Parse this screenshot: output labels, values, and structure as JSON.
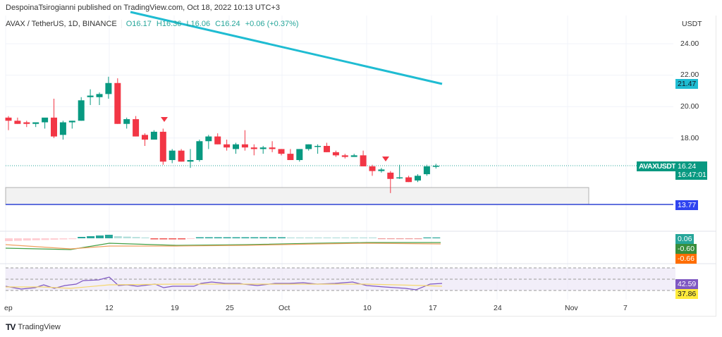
{
  "header": {
    "published_by": "DespoinaTsirogianni published on TradingView.com, Oct 18, 2022 10:13 UTC+3"
  },
  "legend": {
    "symbol": "AVAX / TetherUS, 1D, BINANCE",
    "open": "O16.17",
    "high": "H16.36",
    "low": "L16.06",
    "close": "C16.24",
    "change": "+0.06 (+0.37%)"
  },
  "price_axis": {
    "currency": "USDT",
    "ticks": [
      "24.00",
      "22.00",
      "20.00",
      "18.00"
    ],
    "trendline_tag": "21.47",
    "symbol_tag": "AVAXUSDT",
    "last_price_tag": "16.24",
    "countdown_tag": "16:47:01",
    "support_tag": "13.77"
  },
  "macd_axis": {
    "hist_tag": "0.06",
    "macd_tag": "-0.60",
    "signal_tag": "-0.66"
  },
  "rsi_axis": {
    "rsi_tag": "42.59",
    "ma_tag": "37.86"
  },
  "time_axis": {
    "labels": [
      "ep",
      "12",
      "19",
      "25",
      "Oct",
      "10",
      "17",
      "24",
      "Nov",
      "7"
    ]
  },
  "footer": {
    "logo": "TV",
    "brand": "TradingView"
  },
  "colors": {
    "up": "#089981",
    "down": "#f23645",
    "trendline": "#1fbcd2",
    "support_line": "#2f44d4",
    "rsi": "#7e57c2",
    "rsi_ma": "#f5d76e",
    "macd": "#43a047",
    "signal": "#ff6d00"
  },
  "chart_data": {
    "type": "candlestick",
    "title": "AVAX / TetherUS, 1D, BINANCE",
    "ylabel": "USDT",
    "ylim": [
      13.0,
      25.0
    ],
    "x_labels": [
      "Sep",
      "12",
      "19",
      "25",
      "Oct",
      "10",
      "17",
      "24",
      "Nov",
      "7"
    ],
    "candles": [
      {
        "o": 19.3,
        "h": 19.4,
        "l": 18.5,
        "c": 19.1
      },
      {
        "o": 19.1,
        "h": 19.3,
        "l": 18.9,
        "c": 18.9
      },
      {
        "o": 19.0,
        "h": 19.1,
        "l": 18.7,
        "c": 18.9
      },
      {
        "o": 18.9,
        "h": 19.0,
        "l": 18.7,
        "c": 19.0
      },
      {
        "o": 19.0,
        "h": 19.2,
        "l": 18.6,
        "c": 19.3
      },
      {
        "o": 19.3,
        "h": 20.5,
        "l": 18.0,
        "c": 18.1
      },
      {
        "o": 18.2,
        "h": 19.1,
        "l": 17.9,
        "c": 19.0
      },
      {
        "o": 19.0,
        "h": 19.1,
        "l": 18.6,
        "c": 19.1
      },
      {
        "o": 19.1,
        "h": 20.6,
        "l": 19.1,
        "c": 20.4
      },
      {
        "o": 20.6,
        "h": 21.1,
        "l": 20.1,
        "c": 20.7
      },
      {
        "o": 20.6,
        "h": 20.9,
        "l": 20.1,
        "c": 20.8
      },
      {
        "o": 20.8,
        "h": 21.9,
        "l": 20.5,
        "c": 21.5
      },
      {
        "o": 21.5,
        "h": 21.8,
        "l": 18.9,
        "c": 18.9
      },
      {
        "o": 18.9,
        "h": 19.3,
        "l": 18.6,
        "c": 19.2
      },
      {
        "o": 19.2,
        "h": 19.4,
        "l": 18.1,
        "c": 18.1
      },
      {
        "o": 18.2,
        "h": 18.3,
        "l": 17.5,
        "c": 17.9
      },
      {
        "o": 17.9,
        "h": 18.5,
        "l": 17.9,
        "c": 18.4
      },
      {
        "o": 18.4,
        "h": 18.6,
        "l": 16.3,
        "c": 16.5
      },
      {
        "o": 16.6,
        "h": 17.3,
        "l": 16.4,
        "c": 17.2
      },
      {
        "o": 17.2,
        "h": 17.3,
        "l": 16.5,
        "c": 16.5
      },
      {
        "o": 16.5,
        "h": 17.3,
        "l": 16.1,
        "c": 16.6
      },
      {
        "o": 16.6,
        "h": 17.9,
        "l": 16.5,
        "c": 17.8
      },
      {
        "o": 17.8,
        "h": 18.2,
        "l": 17.3,
        "c": 18.1
      },
      {
        "o": 18.1,
        "h": 18.3,
        "l": 17.6,
        "c": 17.6
      },
      {
        "o": 17.6,
        "h": 17.9,
        "l": 17.2,
        "c": 17.4
      },
      {
        "o": 17.3,
        "h": 17.7,
        "l": 17.0,
        "c": 17.6
      },
      {
        "o": 17.6,
        "h": 18.5,
        "l": 17.2,
        "c": 17.4
      },
      {
        "o": 17.4,
        "h": 17.6,
        "l": 16.9,
        "c": 17.3
      },
      {
        "o": 17.3,
        "h": 17.5,
        "l": 17.0,
        "c": 17.4
      },
      {
        "o": 17.4,
        "h": 17.8,
        "l": 17.1,
        "c": 17.3
      },
      {
        "o": 17.3,
        "h": 17.3,
        "l": 16.9,
        "c": 17.0
      },
      {
        "o": 17.0,
        "h": 17.3,
        "l": 16.6,
        "c": 16.6
      },
      {
        "o": 16.6,
        "h": 17.3,
        "l": 16.5,
        "c": 17.3
      },
      {
        "o": 17.3,
        "h": 17.6,
        "l": 17.2,
        "c": 17.6
      },
      {
        "o": 17.5,
        "h": 17.6,
        "l": 17.0,
        "c": 17.5
      },
      {
        "o": 17.5,
        "h": 17.7,
        "l": 17.1,
        "c": 17.1
      },
      {
        "o": 17.1,
        "h": 17.2,
        "l": 16.8,
        "c": 16.9
      },
      {
        "o": 16.9,
        "h": 17.0,
        "l": 16.7,
        "c": 16.8
      },
      {
        "o": 16.8,
        "h": 17.0,
        "l": 16.8,
        "c": 16.9
      },
      {
        "o": 16.9,
        "h": 17.2,
        "l": 16.2,
        "c": 16.2
      },
      {
        "o": 16.2,
        "h": 16.3,
        "l": 15.6,
        "c": 15.9
      },
      {
        "o": 15.9,
        "h": 16.1,
        "l": 15.8,
        "c": 16.0
      },
      {
        "o": 15.8,
        "h": 15.9,
        "l": 14.5,
        "c": 15.4
      },
      {
        "o": 15.5,
        "h": 16.3,
        "l": 15.4,
        "c": 15.5
      },
      {
        "o": 15.5,
        "h": 15.6,
        "l": 15.2,
        "c": 15.2
      },
      {
        "o": 15.3,
        "h": 15.7,
        "l": 15.2,
        "c": 15.6
      },
      {
        "o": 15.7,
        "h": 16.3,
        "l": 15.6,
        "c": 16.2
      },
      {
        "o": 16.17,
        "h": 16.36,
        "l": 16.06,
        "c": 16.24
      }
    ],
    "trendline": {
      "from": [
        2022.09,
        25.5
      ],
      "to_price": 21.47
    },
    "support_zone": {
      "top": 14.9,
      "bottom": 13.77
    },
    "horizontal_line": 13.77,
    "last_price": 16.24,
    "indicators": {
      "macd": {
        "histogram_last": 0.06,
        "macd_last": -0.6,
        "signal_last": -0.66
      },
      "rsi": {
        "rsi_last": 42.59,
        "ma_last": 37.86,
        "bands": [
          70,
          50,
          30
        ]
      }
    }
  }
}
